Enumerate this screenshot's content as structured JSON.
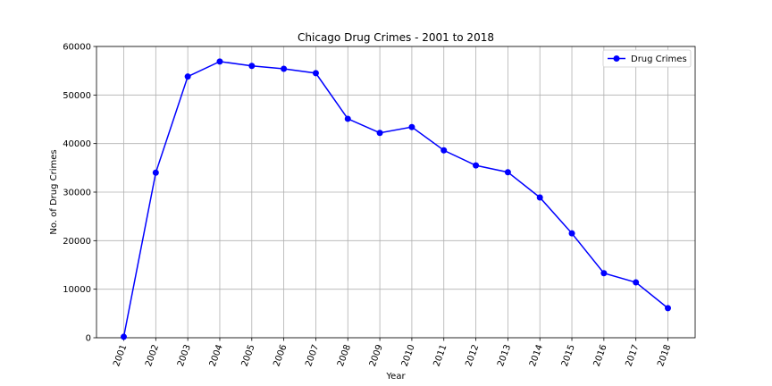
{
  "chart_data": {
    "type": "line",
    "title": "Chicago Drug Crimes - 2001 to 2018",
    "xlabel": "Year",
    "ylabel": "No. of Drug Crimes",
    "x": [
      "2001",
      "2002",
      "2003",
      "2004",
      "2005",
      "2006",
      "2007",
      "2008",
      "2009",
      "2010",
      "2011",
      "2012",
      "2013",
      "2014",
      "2015",
      "2016",
      "2017",
      "2018"
    ],
    "series": [
      {
        "name": "Drug Crimes",
        "color": "#0000ff",
        "values": [
          200,
          34000,
          53800,
          56900,
          56000,
          55400,
          54500,
          45100,
          42200,
          43400,
          38600,
          35500,
          34100,
          28900,
          21500,
          13300,
          11400,
          6100
        ]
      }
    ],
    "ylim": [
      0,
      60000
    ],
    "yticks": [
      "0",
      "10000",
      "20000",
      "30000",
      "40000",
      "50000",
      "60000"
    ],
    "grid": true,
    "legend_position": "top-right"
  }
}
